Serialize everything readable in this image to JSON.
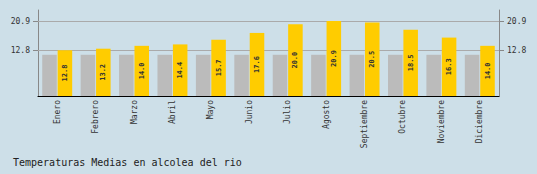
{
  "chart_data": {
    "type": "bar",
    "title": "Temperaturas Medias en alcolea del rio",
    "categories": [
      "Enero",
      "Febrero",
      "Marzo",
      "Abril",
      "Mayo",
      "Junio",
      "Julio",
      "Agosto",
      "Septiembre",
      "Octubre",
      "Noviembre",
      "Diciembre"
    ],
    "series": [
      {
        "color": "#BBBBBB",
        "values": [
          11.5,
          11.5,
          11.5,
          11.5,
          11.5,
          11.5,
          11.5,
          11.5,
          11.5,
          11.5,
          11.5,
          11.5
        ]
      },
      {
        "color": "#FFCC00",
        "values": [
          12.8,
          13.2,
          14.0,
          14.4,
          15.7,
          17.6,
          20.0,
          20.9,
          20.5,
          18.5,
          16.3,
          14.0
        ],
        "value_labels": [
          "12.8",
          "13.2",
          "14.0",
          "14.4",
          "15.7",
          "17.6",
          "20.0",
          "20.9",
          "20.5",
          "18.5",
          "16.3",
          "14.0"
        ],
        "data_labels": true
      }
    ],
    "ylim": [
      0,
      24.0
    ],
    "yticks": [
      12.8,
      20.9
    ],
    "y2lim": [
      0,
      24.0
    ],
    "y2ticks": [
      12.8,
      20.9
    ],
    "grid": true
  }
}
